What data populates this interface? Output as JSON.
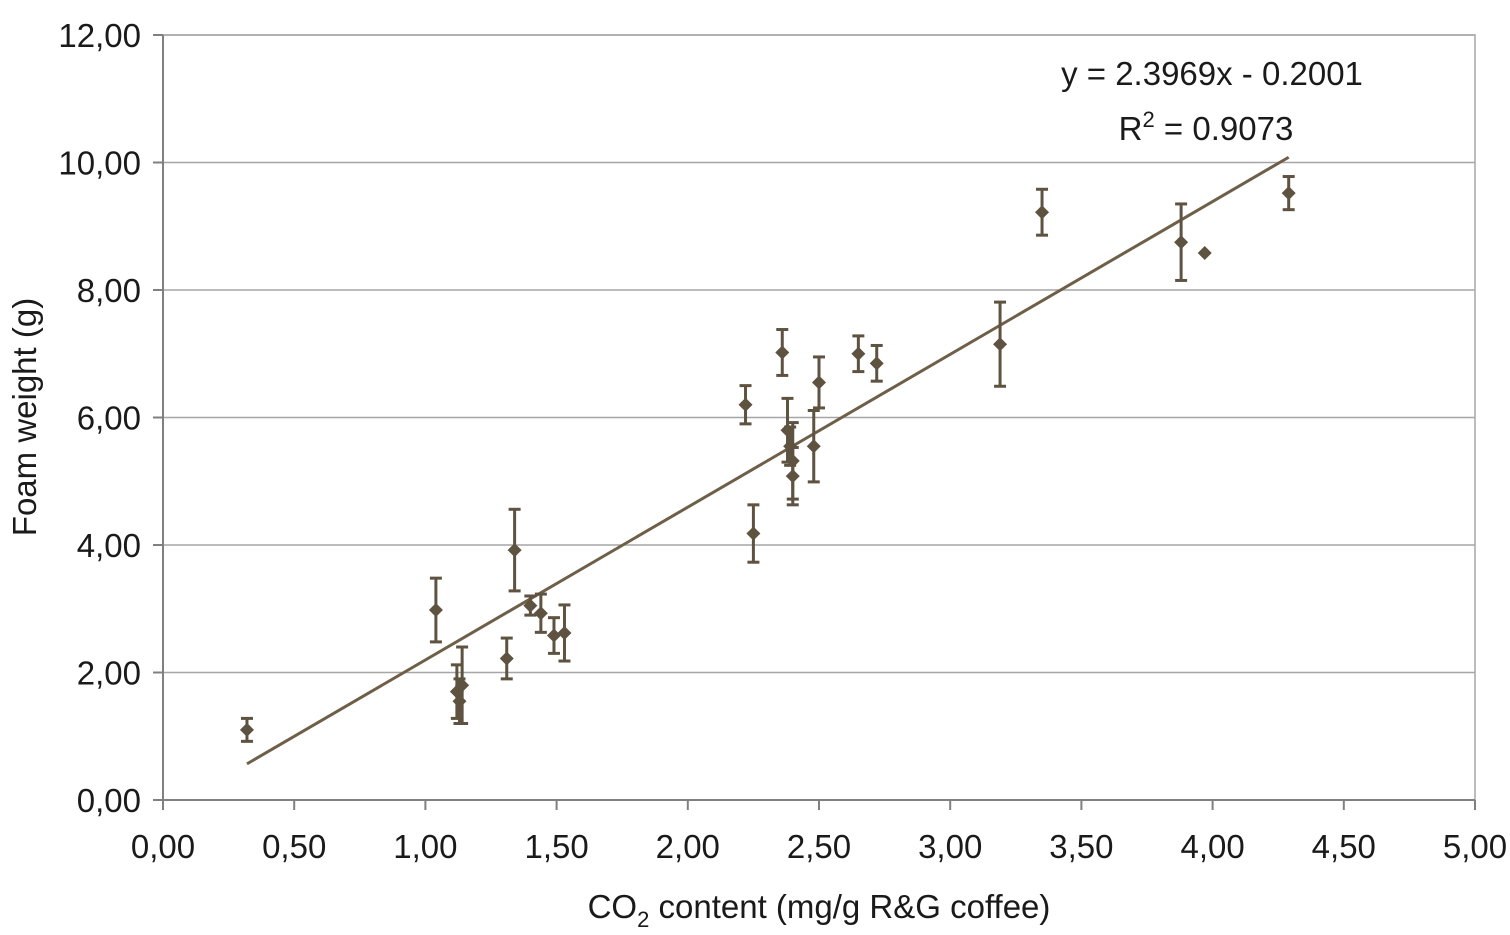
{
  "chart_data": {
    "type": "scatter",
    "xlabel": {
      "prefix": "CO",
      "sub": "2",
      "suffix": " content (mg/g R&G coffee)"
    },
    "ylabel": "Foam weight (g)",
    "xlim": [
      0,
      5
    ],
    "ylim": [
      0,
      12
    ],
    "xticks": [
      0,
      0.5,
      1,
      1.5,
      2,
      2.5,
      3,
      3.5,
      4,
      4.5,
      5
    ],
    "yticks": [
      0,
      2,
      4,
      6,
      8,
      10,
      12
    ],
    "xtick_labels": [
      "0,00",
      "0,50",
      "1,00",
      "1,50",
      "2,00",
      "2,50",
      "3,00",
      "3,50",
      "4,00",
      "4,50",
      "5,00"
    ],
    "ytick_labels": [
      "0,00",
      "2,00",
      "4,00",
      "6,00",
      "8,00",
      "10,00",
      "12,00"
    ],
    "grid": "horizontal",
    "colors": {
      "marker": "#5e5240",
      "trendline": "#6e6048",
      "grid": "#a6a6a6",
      "axis": "#808080"
    },
    "trendline": {
      "slope": 2.3969,
      "intercept": -0.2001,
      "x_range": [
        0.32,
        4.29
      ],
      "equation": "y = 2.3969x - 0.2001",
      "r2_prefix": "R",
      "r2_sup": "2",
      "r2_suffix": " = 0.9073"
    },
    "points": [
      {
        "x": 0.32,
        "y": 1.1,
        "err": 0.18
      },
      {
        "x": 1.04,
        "y": 2.98,
        "err": 0.5
      },
      {
        "x": 1.12,
        "y": 1.7,
        "err": 0.42
      },
      {
        "x": 1.13,
        "y": 1.55,
        "err": 0.35
      },
      {
        "x": 1.14,
        "y": 1.8,
        "err": 0.6
      },
      {
        "x": 1.31,
        "y": 2.22,
        "err": 0.32
      },
      {
        "x": 1.34,
        "y": 3.92,
        "err": 0.64
      },
      {
        "x": 1.4,
        "y": 3.05,
        "err": 0.15
      },
      {
        "x": 1.44,
        "y": 2.93,
        "err": 0.3
      },
      {
        "x": 1.49,
        "y": 2.58,
        "err": 0.28
      },
      {
        "x": 1.53,
        "y": 2.62,
        "err": 0.44
      },
      {
        "x": 2.22,
        "y": 6.2,
        "err": 0.3
      },
      {
        "x": 2.25,
        "y": 4.18,
        "err": 0.45
      },
      {
        "x": 2.36,
        "y": 7.02,
        "err": 0.36
      },
      {
        "x": 2.38,
        "y": 5.8,
        "err": 0.5
      },
      {
        "x": 2.39,
        "y": 5.55,
        "err": 0.3
      },
      {
        "x": 2.4,
        "y": 5.32,
        "err": 0.6
      },
      {
        "x": 2.4,
        "y": 5.08,
        "err": 0.45
      },
      {
        "x": 2.48,
        "y": 5.55,
        "err": 0.56
      },
      {
        "x": 2.5,
        "y": 6.55,
        "err": 0.4
      },
      {
        "x": 2.65,
        "y": 7.0,
        "err": 0.28
      },
      {
        "x": 2.72,
        "y": 6.85,
        "err": 0.28
      },
      {
        "x": 3.19,
        "y": 7.15,
        "err": 0.66
      },
      {
        "x": 3.35,
        "y": 9.22,
        "err": 0.36
      },
      {
        "x": 3.88,
        "y": 8.75,
        "err": 0.6
      },
      {
        "x": 3.97,
        "y": 8.58,
        "err": 0
      },
      {
        "x": 4.29,
        "y": 9.52,
        "err": 0.26
      }
    ]
  }
}
